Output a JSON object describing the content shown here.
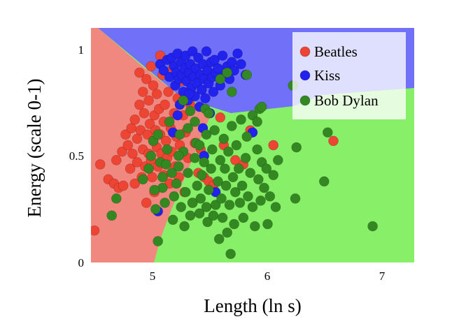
{
  "chart_data": {
    "type": "scatter",
    "xlabel": "Length (ln s)",
    "ylabel": "Energy (scale 0-1)",
    "xlim": [
      4.5,
      7.3
    ],
    "ylim": [
      0,
      1.1
    ],
    "x_ticks": [
      5,
      6,
      7
    ],
    "x_tick_labels": [
      "5",
      "6",
      "7"
    ],
    "y_ticks": [
      0,
      0.5,
      1
    ],
    "y_tick_labels": [
      "0",
      "0.5",
      "1"
    ],
    "legend_position": "top-right",
    "grid": false,
    "regions": [
      {
        "name": "Beatles",
        "color": "#f08880"
      },
      {
        "name": "Kiss",
        "color": "#7070f8"
      },
      {
        "name": "Bob Dylan",
        "color": "#88f068"
      }
    ],
    "series": [
      {
        "name": "Beatles",
        "color": "#ee4433",
        "points": [
          [
            4.53,
            0.15
          ],
          [
            4.58,
            0.46
          ],
          [
            4.65,
            0.39
          ],
          [
            4.7,
            0.37
          ],
          [
            4.72,
            0.48
          ],
          [
            4.74,
            0.35
          ],
          [
            4.77,
            0.52
          ],
          [
            4.78,
            0.36
          ],
          [
            4.8,
            0.6
          ],
          [
            4.82,
            0.55
          ],
          [
            4.84,
            0.44
          ],
          [
            4.85,
            0.63
          ],
          [
            4.86,
            0.51
          ],
          [
            4.88,
            0.67
          ],
          [
            4.88,
            0.37
          ],
          [
            4.9,
            0.58
          ],
          [
            4.9,
            0.47
          ],
          [
            4.92,
            0.74
          ],
          [
            4.93,
            0.62
          ],
          [
            4.94,
            0.4
          ],
          [
            4.95,
            0.8
          ],
          [
            4.95,
            0.53
          ],
          [
            4.96,
            0.7
          ],
          [
            4.97,
            0.45
          ],
          [
            4.98,
            0.28
          ],
          [
            4.98,
            0.86
          ],
          [
            4.99,
            0.6
          ],
          [
            5.0,
            0.51
          ],
          [
            5.0,
            0.76
          ],
          [
            5.01,
            0.65
          ],
          [
            5.02,
            0.48
          ],
          [
            5.02,
            0.92
          ],
          [
            5.03,
            0.4
          ],
          [
            5.04,
            0.57
          ],
          [
            5.04,
            0.83
          ],
          [
            5.05,
            0.69
          ],
          [
            5.05,
            0.33
          ],
          [
            5.06,
            0.62
          ],
          [
            5.07,
            0.79
          ],
          [
            5.07,
            0.54
          ],
          [
            5.08,
            0.45
          ],
          [
            5.09,
            0.72
          ],
          [
            5.1,
            0.97
          ],
          [
            5.1,
            0.6
          ],
          [
            5.11,
            0.51
          ],
          [
            5.12,
            0.88
          ],
          [
            5.13,
            0.41
          ],
          [
            5.13,
            0.66
          ],
          [
            5.14,
            0.74
          ],
          [
            5.15,
            0.57
          ],
          [
            5.16,
            0.49
          ],
          [
            5.17,
            0.8
          ],
          [
            5.18,
            0.37
          ],
          [
            5.19,
            0.63
          ],
          [
            5.2,
            0.52
          ],
          [
            5.21,
            0.91
          ],
          [
            5.22,
            0.7
          ],
          [
            5.23,
            0.45
          ],
          [
            5.24,
            0.59
          ],
          [
            5.25,
            0.77
          ],
          [
            5.26,
            0.4
          ],
          [
            5.27,
            0.55
          ],
          [
            5.28,
            0.85
          ],
          [
            5.3,
            0.69
          ],
          [
            5.31,
            0.33
          ],
          [
            5.32,
            0.61
          ],
          [
            5.34,
            0.49
          ],
          [
            5.36,
            0.74
          ],
          [
            5.38,
            0.28
          ],
          [
            5.4,
            0.56
          ],
          [
            5.43,
            0.42
          ],
          [
            5.45,
            0.53
          ],
          [
            5.48,
            0.4
          ],
          [
            5.52,
            0.38
          ],
          [
            5.56,
            0.36
          ],
          [
            5.6,
            0.87
          ],
          [
            5.62,
            0.68
          ],
          [
            5.65,
            0.55
          ],
          [
            5.75,
            0.48
          ],
          [
            5.82,
            0.46
          ],
          [
            5.88,
            0.62
          ],
          [
            6.08,
            0.55
          ],
          [
            6.6,
            0.57
          ],
          [
            4.92,
            0.89
          ]
        ]
      },
      {
        "name": "Kiss",
        "color": "#2222ee",
        "points": [
          [
            5.1,
            0.93
          ],
          [
            5.13,
            0.9
          ],
          [
            5.16,
            0.95
          ],
          [
            5.18,
            0.87
          ],
          [
            5.2,
            0.96
          ],
          [
            5.22,
            0.92
          ],
          [
            5.23,
            0.83
          ],
          [
            5.24,
            0.89
          ],
          [
            5.25,
            0.98
          ],
          [
            5.26,
            0.86
          ],
          [
            5.27,
            0.74
          ],
          [
            5.28,
            0.94
          ],
          [
            5.29,
            0.88
          ],
          [
            5.3,
            0.8
          ],
          [
            5.31,
            0.91
          ],
          [
            5.32,
            0.97
          ],
          [
            5.33,
            0.85
          ],
          [
            5.34,
            0.76
          ],
          [
            5.35,
            0.89
          ],
          [
            5.36,
            0.93
          ],
          [
            5.37,
            0.82
          ],
          [
            5.38,
            0.99
          ],
          [
            5.39,
            0.87
          ],
          [
            5.4,
            0.78
          ],
          [
            5.41,
            0.91
          ],
          [
            5.42,
            0.84
          ],
          [
            5.43,
            0.96
          ],
          [
            5.44,
            0.73
          ],
          [
            5.45,
            0.88
          ],
          [
            5.46,
            0.81
          ],
          [
            5.47,
            0.93
          ],
          [
            5.48,
            0.86
          ],
          [
            5.49,
            0.77
          ],
          [
            5.5,
            0.99
          ],
          [
            5.51,
            0.9
          ],
          [
            5.52,
            0.84
          ],
          [
            5.53,
            0.7
          ],
          [
            5.54,
            0.94
          ],
          [
            5.55,
            0.87
          ],
          [
            5.56,
            0.8
          ],
          [
            5.57,
            0.95
          ],
          [
            5.58,
            0.89
          ],
          [
            5.6,
            0.91
          ],
          [
            5.62,
            0.83
          ],
          [
            5.64,
            0.97
          ],
          [
            5.66,
            0.88
          ],
          [
            5.68,
            0.92
          ],
          [
            5.7,
            0.86
          ],
          [
            5.72,
            0.94
          ],
          [
            5.74,
            0.9
          ],
          [
            5.77,
            0.98
          ],
          [
            5.8,
            0.93
          ],
          [
            5.84,
            0.88
          ],
          [
            5.21,
            0.61
          ],
          [
            5.25,
            0.69
          ],
          [
            5.48,
            0.5
          ],
          [
            5.58,
            0.33
          ],
          [
            5.9,
            0.61
          ],
          [
            5.08,
            0.24
          ],
          [
            5.47,
            0.63
          ],
          [
            5.35,
            0.79
          ]
        ]
      },
      {
        "name": "Bob Dylan",
        "color": "#338822",
        "points": [
          [
            4.68,
            0.22
          ],
          [
            4.72,
            0.3
          ],
          [
            4.95,
            0.39
          ],
          [
            5.0,
            0.44
          ],
          [
            5.02,
            0.5
          ],
          [
            5.04,
            0.57
          ],
          [
            5.06,
            0.25
          ],
          [
            5.08,
            0.6
          ],
          [
            5.08,
            0.1
          ],
          [
            5.1,
            0.47
          ],
          [
            5.12,
            0.35
          ],
          [
            5.14,
            0.28
          ],
          [
            5.16,
            0.53
          ],
          [
            5.18,
            0.66
          ],
          [
            5.2,
            0.42
          ],
          [
            5.21,
            0.2
          ],
          [
            5.22,
            0.31
          ],
          [
            5.24,
            0.37
          ],
          [
            5.26,
            0.45
          ],
          [
            5.27,
            0.6
          ],
          [
            5.28,
            0.26
          ],
          [
            5.3,
            0.52
          ],
          [
            5.31,
            0.17
          ],
          [
            5.32,
            0.33
          ],
          [
            5.34,
            0.42
          ],
          [
            5.36,
            0.22
          ],
          [
            5.38,
            0.28
          ],
          [
            5.4,
            0.49
          ],
          [
            5.41,
            0.56
          ],
          [
            5.42,
            0.36
          ],
          [
            5.44,
            0.23
          ],
          [
            5.45,
            0.3
          ],
          [
            5.46,
            0.41
          ],
          [
            5.48,
            0.47
          ],
          [
            5.49,
            0.72
          ],
          [
            5.5,
            0.26
          ],
          [
            5.51,
            0.19
          ],
          [
            5.52,
            0.34
          ],
          [
            5.54,
            0.44
          ],
          [
            5.55,
            0.53
          ],
          [
            5.56,
            0.22
          ],
          [
            5.57,
            0.62
          ],
          [
            5.58,
            0.27
          ],
          [
            5.6,
            0.38
          ],
          [
            5.61,
            0.11
          ],
          [
            5.62,
            0.48
          ],
          [
            5.63,
            0.3
          ],
          [
            5.64,
            0.21
          ],
          [
            5.65,
            0.58
          ],
          [
            5.66,
            0.44
          ],
          [
            5.67,
            0.36
          ],
          [
            5.68,
            0.14
          ],
          [
            5.69,
            0.52
          ],
          [
            5.7,
            0.27
          ],
          [
            5.71,
            0.04
          ],
          [
            5.72,
            0.64
          ],
          [
            5.73,
            0.4
          ],
          [
            5.74,
            0.18
          ],
          [
            5.75,
            0.33
          ],
          [
            5.76,
            0.55
          ],
          [
            5.78,
            0.44
          ],
          [
            5.79,
            0.28
          ],
          [
            5.8,
            0.67
          ],
          [
            5.81,
            0.36
          ],
          [
            5.82,
            0.21
          ],
          [
            5.84,
            0.49
          ],
          [
            5.85,
            0.59
          ],
          [
            5.86,
            0.31
          ],
          [
            5.88,
            0.42
          ],
          [
            5.9,
            0.26
          ],
          [
            5.92,
            0.17
          ],
          [
            5.94,
            0.53
          ],
          [
            5.95,
            0.39
          ],
          [
            5.96,
            0.72
          ],
          [
            5.97,
            0.29
          ],
          [
            5.98,
            0.47
          ],
          [
            6.0,
            0.35
          ],
          [
            6.02,
            0.44
          ],
          [
            6.03,
            0.18
          ],
          [
            6.05,
            0.31
          ],
          [
            6.08,
            0.41
          ],
          [
            6.1,
            0.26
          ],
          [
            6.12,
            0.48
          ],
          [
            6.27,
            0.3
          ],
          [
            6.28,
            0.54
          ],
          [
            6.52,
            0.38
          ],
          [
            6.55,
            0.61
          ],
          [
            6.94,
            0.17
          ],
          [
            5.62,
            0.86
          ],
          [
            5.68,
            0.89
          ],
          [
            5.72,
            0.8
          ],
          [
            5.85,
            0.88
          ],
          [
            6.25,
            0.83
          ],
          [
            5.36,
            0.71
          ],
          [
            5.4,
            0.66
          ],
          [
            5.3,
            0.76
          ],
          [
            5.44,
            0.55
          ],
          [
            5.5,
            0.6
          ],
          [
            5.26,
            0.5
          ],
          [
            5.15,
            0.46
          ],
          [
            5.12,
            0.4
          ],
          [
            5.34,
            0.63
          ],
          [
            5.52,
            0.7
          ],
          [
            5.9,
            0.69
          ],
          [
            5.94,
            0.66
          ],
          [
            5.98,
            0.73
          ],
          [
            5.05,
            0.34
          ]
        ]
      }
    ]
  }
}
